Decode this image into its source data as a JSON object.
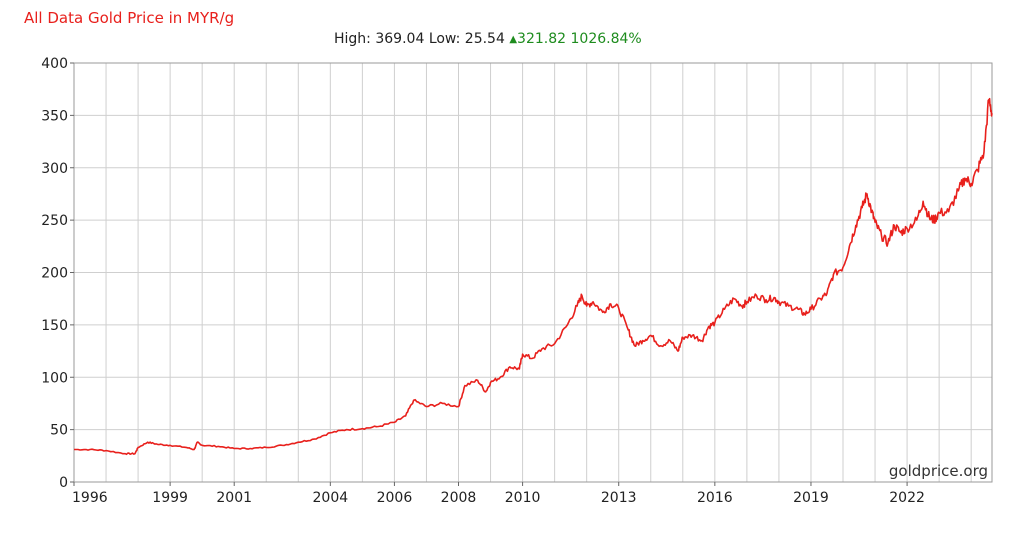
{
  "title": "All Data Gold Price in MYR/g",
  "stats": {
    "high_label": "High:",
    "high": "369.04",
    "low_label": "Low:",
    "low": "25.54",
    "change": "321.82",
    "change_pct": "1026.84%"
  },
  "watermark": "goldprice.org",
  "colors": {
    "line": "#e8201c",
    "title": "#e8201c",
    "gain": "#1e8c1e",
    "grid": "#cfcfcf"
  },
  "chart_data": {
    "type": "line",
    "title": "All Data Gold Price in MYR/g",
    "xlabel": "",
    "ylabel": "",
    "xlim": [
      1996.0,
      2024.65
    ],
    "ylim": [
      0,
      400
    ],
    "grid": true,
    "x_ticks": [
      {
        "label": "1996",
        "value": 1996
      },
      {
        "label": "1999",
        "value": 1999
      },
      {
        "label": "2001",
        "value": 2001
      },
      {
        "label": "2004",
        "value": 2004
      },
      {
        "label": "2006",
        "value": 2006
      },
      {
        "label": "2008",
        "value": 2008
      },
      {
        "label": "2010",
        "value": 2010
      },
      {
        "label": "2013",
        "value": 2013
      },
      {
        "label": "2016",
        "value": 2016
      },
      {
        "label": "2019",
        "value": 2019
      },
      {
        "label": "2022",
        "value": 2022
      }
    ],
    "y_ticks": [
      0,
      50,
      100,
      150,
      200,
      250,
      300,
      350,
      400
    ],
    "series": [
      {
        "x": [
          1996.0,
          1996.5,
          1997.0,
          1997.6,
          1997.9,
          1998.0,
          1998.3,
          1998.6,
          1999.0,
          1999.5,
          1999.75,
          1999.85,
          2000.0,
          2000.5,
          2001.0,
          2001.5,
          2002.0,
          2002.5,
          2003.0,
          2003.5,
          2004.0,
          2004.5,
          2005.0,
          2005.5,
          2006.0,
          2006.35,
          2006.6,
          2007.0,
          2007.5,
          2008.0,
          2008.2,
          2008.6,
          2008.85,
          2009.0,
          2009.3,
          2009.6,
          2009.9,
          2010.0,
          2010.3,
          2010.6,
          2011.0,
          2011.4,
          2011.7,
          2011.85,
          2012.0,
          2012.2,
          2012.5,
          2012.75,
          2013.0,
          2013.3,
          2013.5,
          2013.75,
          2014.0,
          2014.3,
          2014.6,
          2014.85,
          2015.0,
          2015.3,
          2015.6,
          2015.8,
          2016.0,
          2016.3,
          2016.6,
          2016.85,
          2017.0,
          2017.3,
          2017.6,
          2017.85,
          2018.0,
          2018.3,
          2018.6,
          2018.8,
          2019.0,
          2019.3,
          2019.5,
          2019.7,
          2020.0,
          2020.2,
          2020.4,
          2020.6,
          2020.75,
          2020.9,
          2021.0,
          2021.2,
          2021.4,
          2021.6,
          2021.8,
          2022.0,
          2022.3,
          2022.5,
          2022.7,
          2022.85,
          2023.0,
          2023.3,
          2023.6,
          2023.8,
          2024.0,
          2024.2,
          2024.4,
          2024.55,
          2024.65
        ],
        "y": [
          31,
          31,
          30,
          27,
          27,
          33,
          38,
          36,
          35,
          33,
          31,
          38,
          35,
          34,
          32,
          32,
          33,
          35,
          38,
          41,
          47,
          50,
          51,
          53,
          57,
          63,
          78,
          72,
          75,
          72,
          92,
          97,
          86,
          95,
          100,
          110,
          108,
          122,
          118,
          127,
          132,
          150,
          168,
          178,
          168,
          172,
          162,
          170,
          166,
          145,
          130,
          135,
          140,
          130,
          135,
          125,
          138,
          140,
          135,
          148,
          152,
          165,
          175,
          168,
          172,
          178,
          174,
          176,
          172,
          168,
          165,
          160,
          165,
          175,
          180,
          198,
          205,
          225,
          245,
          262,
          275,
          258,
          248,
          235,
          228,
          245,
          238,
          242,
          250,
          268,
          252,
          250,
          257,
          258,
          278,
          290,
          285,
          298,
          315,
          365,
          352
        ]
      }
    ]
  }
}
